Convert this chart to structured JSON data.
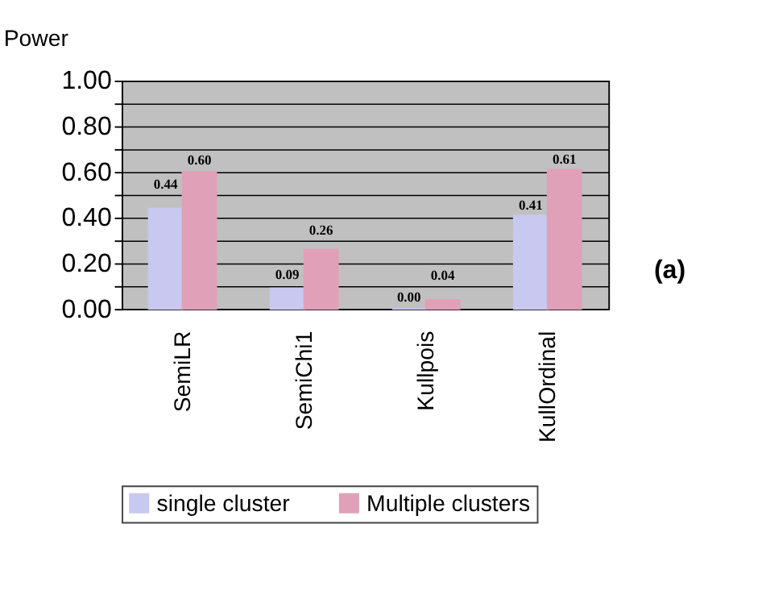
{
  "chart_data": {
    "type": "bar",
    "ylabel": "Power",
    "categories": [
      "SemiLR",
      "SemiChi1",
      "Kullpois",
      "KullOrdinal"
    ],
    "series": [
      {
        "name": "single cluster",
        "color": "#c8c8f0",
        "values": [
          0.44,
          0.09,
          0.0,
          0.41
        ],
        "value_labels": [
          "0.44",
          "0.09",
          "0.00",
          "0.41"
        ]
      },
      {
        "name": "Multiple clusters",
        "color": "#e0a0b8",
        "values": [
          0.6,
          0.26,
          0.04,
          0.61
        ],
        "value_labels": [
          "0.60",
          "0.26",
          "0.04",
          "0.61"
        ]
      }
    ],
    "ylim": [
      0,
      1
    ],
    "yticks": [
      {
        "value": 0,
        "label": "0.00"
      },
      {
        "value": 0.1,
        "label": null
      },
      {
        "value": 0.2,
        "label": "0.20"
      },
      {
        "value": 0.3,
        "label": null
      },
      {
        "value": 0.4,
        "label": "0.40"
      },
      {
        "value": 0.5,
        "label": null
      },
      {
        "value": 0.6,
        "label": "0.60"
      },
      {
        "value": 0.7,
        "label": null
      },
      {
        "value": 0.8,
        "label": "0.80"
      },
      {
        "value": 0.9,
        "label": null
      },
      {
        "value": 1.0,
        "label": "1.00"
      }
    ],
    "grid": "y",
    "legend": "bottom",
    "annotations": [
      "(a)"
    ]
  }
}
